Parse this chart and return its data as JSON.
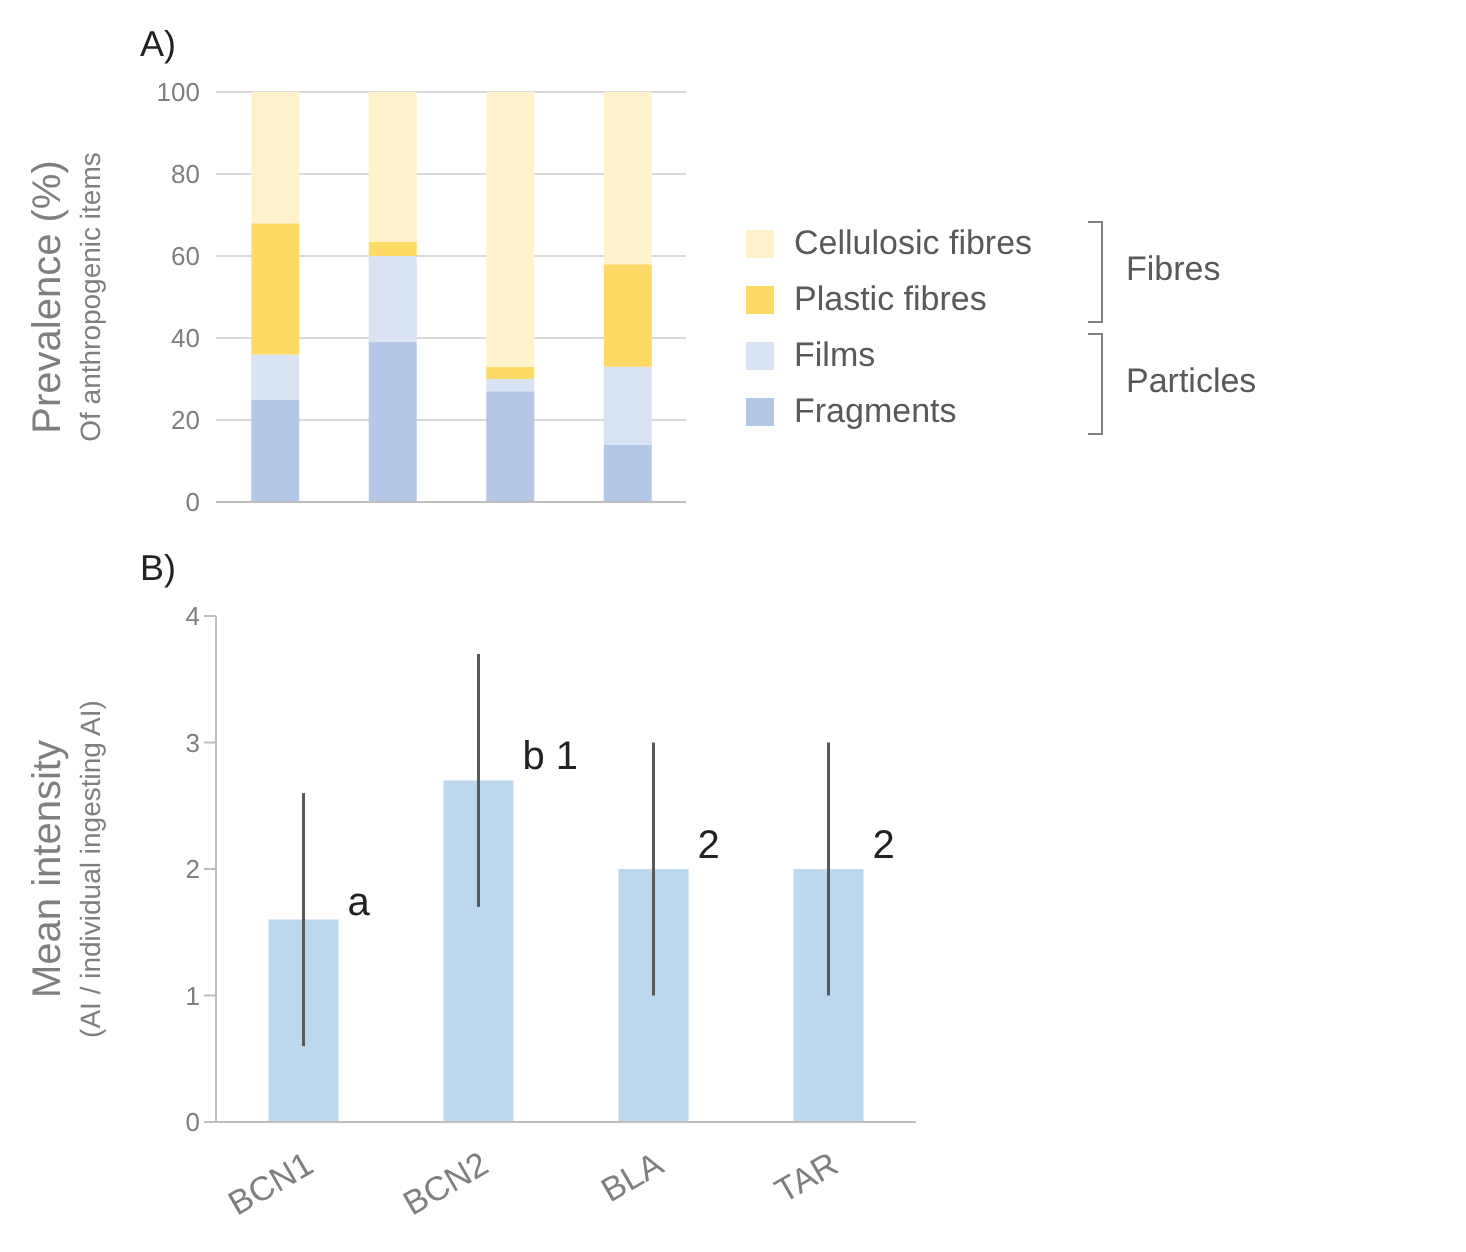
{
  "chart_data": [
    {
      "type": "bar",
      "title": "A)",
      "ylabel": "Prevalence (%)\nOf anthropogenic items",
      "categories": [
        null,
        null,
        null,
        null
      ],
      "stacked": true,
      "series": [
        {
          "name": "Fragments",
          "color": "#b4c7e7",
          "values": [
            25,
            39,
            27,
            14
          ]
        },
        {
          "name": "Films",
          "color": "#dae3f3",
          "values": [
            11,
            21,
            3,
            19
          ]
        },
        {
          "name": "Plastic fibres",
          "color": "#ffd966",
          "values": [
            32,
            3.5,
            3,
            25
          ]
        },
        {
          "name": "Cellulosic fibres",
          "color": "#fff2cc",
          "values": [
            32,
            36.5,
            67,
            42
          ]
        }
      ],
      "ylim": [
        0,
        100
      ],
      "yticks": [
        0,
        20,
        40,
        60,
        80,
        100
      ],
      "grid": "y",
      "legend": "right",
      "tick_labels": "y",
      "annotations": [
        "Fibres",
        "Particles"
      ]
    },
    {
      "type": "bar",
      "title": "B)",
      "ylabel": "Mean intensity\n(AI / individual ingesting AI)",
      "categories": [
        "BCN1",
        "BCN2",
        "BLA",
        "TAR"
      ],
      "values": [
        1.6,
        2.7,
        2,
        2
      ],
      "color": "#bdd7ee",
      "errors": [
        [
          0.6,
          2.6
        ],
        [
          1.7,
          3.7
        ],
        [
          1,
          3
        ],
        [
          1,
          3
        ]
      ],
      "ylim": [
        0,
        4
      ],
      "yticks": [
        0,
        1,
        2,
        3,
        4
      ],
      "annotations": [
        {
          "text": "a",
          "x": "BCN1",
          "y": 1.75
        },
        {
          "text": "b 1",
          "x": "BCN2",
          "y": 2.9
        },
        {
          "text": "2",
          "x": "BLA",
          "y": 2.2
        },
        {
          "text": "2",
          "x": "TAR",
          "y": 2.2
        }
      ]
    }
  ]
}
